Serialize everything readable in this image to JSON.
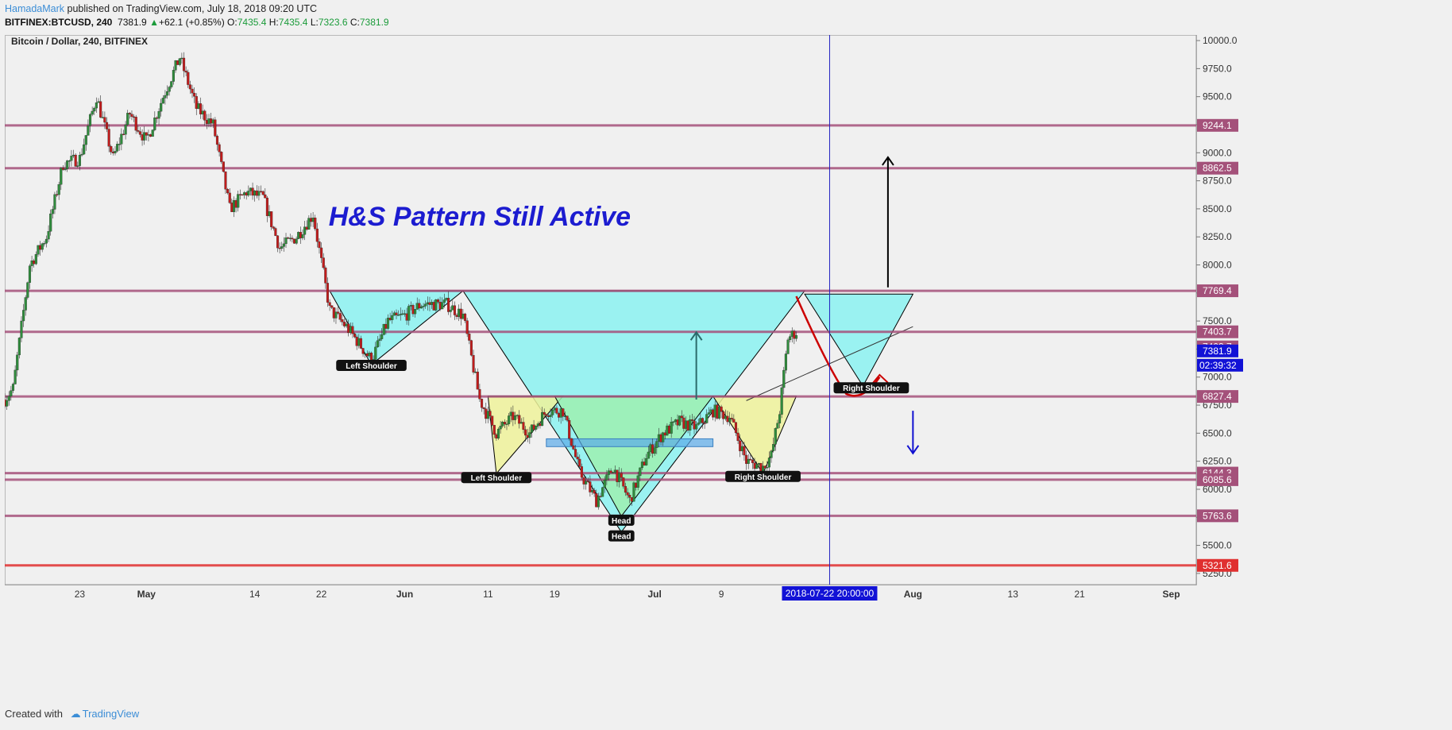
{
  "header": {
    "author": "HamadaMark",
    "published": "published on TradingView.com, July 18, 2018 09:20 UTC",
    "symbol": "BITFINEX:BTCUSD, 240",
    "last": "7381.9",
    "change": "+62.1 (+0.85%)",
    "o_label": "O:",
    "o": "7435.4",
    "h_label": "H:",
    "h": "7435.4",
    "l_label": "L:",
    "l": "7323.6",
    "c_label": "C:",
    "c": "7381.9"
  },
  "footer": {
    "created_with": "Created with",
    "brand": "TradingView"
  },
  "chart_data": {
    "type": "candlestick",
    "title": "Bitcoin / Dollar, 240, BITFINEX",
    "annotation": "H&S Pattern Still Active",
    "x_ticks": [
      "23",
      "May",
      "14",
      "22",
      "Jun",
      "11",
      "19",
      "Jul",
      "9",
      "Aug",
      "13",
      "21",
      "Sep"
    ],
    "x_date_range": [
      "2018-04-14",
      "2018-09-04"
    ],
    "y_ticks": [
      5250,
      5500,
      5750,
      6000,
      6250,
      6500,
      6750,
      7000,
      7250,
      7500,
      7750,
      8000,
      8250,
      8500,
      8750,
      9000,
      9250,
      9500,
      9750,
      10000
    ],
    "ylim": [
      5150,
      10050
    ],
    "price_path": [
      [
        "2018-04-14",
        6800
      ],
      [
        "2018-04-15",
        6900
      ],
      [
        "2018-04-17",
        8000
      ],
      [
        "2018-04-19",
        8250
      ],
      [
        "2018-04-21",
        8900
      ],
      [
        "2018-04-23",
        8950
      ],
      [
        "2018-04-25",
        9500
      ],
      [
        "2018-04-27",
        8950
      ],
      [
        "2018-04-29",
        9350
      ],
      [
        "2018-05-01",
        9100
      ],
      [
        "2018-05-03",
        9500
      ],
      [
        "2018-05-05",
        9850
      ],
      [
        "2018-05-07",
        9400
      ],
      [
        "2018-05-09",
        9250
      ],
      [
        "2018-05-11",
        8500
      ],
      [
        "2018-05-13",
        8650
      ],
      [
        "2018-05-15",
        8600
      ],
      [
        "2018-05-17",
        8150
      ],
      [
        "2018-05-19",
        8250
      ],
      [
        "2018-05-21",
        8450
      ],
      [
        "2018-05-23",
        7600
      ],
      [
        "2018-05-25",
        7450
      ],
      [
        "2018-05-28",
        7150
      ],
      [
        "2018-05-30",
        7500
      ],
      [
        "2018-06-01",
        7550
      ],
      [
        "2018-06-03",
        7650
      ],
      [
        "2018-06-06",
        7650
      ],
      [
        "2018-06-08",
        7550
      ],
      [
        "2018-06-10",
        6800
      ],
      [
        "2018-06-12",
        6500
      ],
      [
        "2018-06-14",
        6650
      ],
      [
        "2018-06-16",
        6500
      ],
      [
        "2018-06-18",
        6700
      ],
      [
        "2018-06-20",
        6700
      ],
      [
        "2018-06-22",
        6150
      ],
      [
        "2018-06-24",
        5900
      ],
      [
        "2018-06-26",
        6200
      ],
      [
        "2018-06-28",
        5900
      ],
      [
        "2018-06-30",
        6300
      ],
      [
        "2018-07-02",
        6500
      ],
      [
        "2018-07-04",
        6600
      ],
      [
        "2018-07-06",
        6550
      ],
      [
        "2018-07-08",
        6700
      ],
      [
        "2018-07-10",
        6650
      ],
      [
        "2018-07-12",
        6250
      ],
      [
        "2018-07-14",
        6200
      ],
      [
        "2018-07-15",
        6300
      ],
      [
        "2018-07-16",
        6700
      ],
      [
        "2018-07-17",
        7350
      ],
      [
        "2018-07-18",
        7400
      ]
    ],
    "horizontal_levels": [
      {
        "price": 9244.1,
        "label": "9244.1",
        "color": "#a4517a"
      },
      {
        "price": 8862.5,
        "label": "8862.5",
        "color": "#a4517a"
      },
      {
        "price": 7769.4,
        "label": "7769.4",
        "color": "#a4517a"
      },
      {
        "price": 7403.7,
        "label": "7403.7",
        "color": "#a4517a"
      },
      {
        "price": 6827.4,
        "label": "6827.4",
        "color": "#a4517a"
      },
      {
        "price": 6144.3,
        "label": "6144.3",
        "color": "#a4517a"
      },
      {
        "price": 6085.6,
        "label": "6085.6",
        "color": "#a4517a"
      },
      {
        "price": 5763.6,
        "label": "5763.6",
        "color": "#a4517a"
      },
      {
        "price": 5321.6,
        "label": "5321.6",
        "color": "#e03030"
      }
    ],
    "extra_price_labels": [
      {
        "price": 7403.7,
        "label": "7403.7",
        "color": "#a4517a"
      },
      {
        "price": 7381.9,
        "label": "7381.9",
        "color": "#1212d6"
      }
    ],
    "countdown": "02:39:32",
    "current_date_label": "2018-07-22 20:00:00",
    "current_date": "2018-07-22",
    "pattern_labels": [
      {
        "text": "Left Shoulder",
        "date": "2018-05-28",
        "price": 7140
      },
      {
        "text": "Left Shoulder",
        "date": "2018-06-12",
        "price": 6140
      },
      {
        "text": "Head",
        "date": "2018-06-27",
        "price": 5620
      },
      {
        "text": "Head",
        "date": "2018-06-27",
        "price": 5760
      },
      {
        "text": "Right Shoulder",
        "date": "2018-07-14",
        "price": 6150
      },
      {
        "text": "Right Shoulder",
        "date": "2018-07-27",
        "price": 6940
      }
    ],
    "colors": {
      "large_pattern": "#7ef3f1",
      "small_shoulders": "#eef29a",
      "small_head": "#9ef0b0",
      "bull_candle": "#2f8b3c",
      "bear_candle": "#c01c1c",
      "annotation_text": "#1c1cd0",
      "level_line": "#a4517a"
    }
  }
}
